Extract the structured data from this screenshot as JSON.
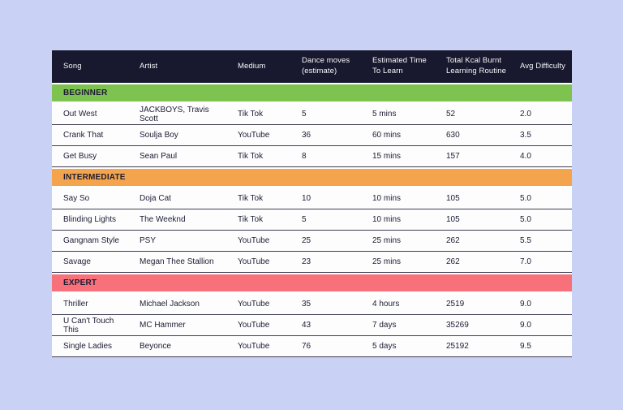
{
  "colors": {
    "page_background": "#c9d2f4",
    "header_background": "#18182f",
    "header_text": "#f7f7fa",
    "body_text": "#1c1c33",
    "row_background": "#fdfdfe",
    "row_divider": "#3f3f54",
    "beginner": "#7ec24f",
    "intermediate": "#f4a44c",
    "expert": "#f7707a"
  },
  "chart_data": {
    "type": "table",
    "columns": [
      {
        "lines": [
          "Song"
        ]
      },
      {
        "lines": [
          "Artist"
        ]
      },
      {
        "lines": [
          "Medium"
        ]
      },
      {
        "lines": [
          "Dance moves",
          "(estimate)"
        ]
      },
      {
        "lines": [
          "Estimated Time",
          "To Learn"
        ]
      },
      {
        "lines": [
          "Total Kcal Burnt",
          "Learning Routine"
        ]
      },
      {
        "lines": [
          "Avg Difficulty"
        ]
      }
    ],
    "sections": [
      {
        "label": "BEGINNER",
        "color_key": "beginner",
        "rows": [
          {
            "song": "Out West",
            "artist": "JACKBOYS, Travis Scott",
            "medium": "Tik Tok",
            "dance_moves": "5",
            "time_to_learn": "5 mins",
            "kcal_burnt": "52",
            "avg_difficulty": "2.0"
          },
          {
            "song": "Crank That",
            "artist": "Soulja Boy",
            "medium": "YouTube",
            "dance_moves": "36",
            "time_to_learn": "60 mins",
            "kcal_burnt": "630",
            "avg_difficulty": "3.5"
          },
          {
            "song": "Get Busy",
            "artist": "Sean Paul",
            "medium": "Tik Tok",
            "dance_moves": "8",
            "time_to_learn": "15 mins",
            "kcal_burnt": "157",
            "avg_difficulty": "4.0"
          }
        ]
      },
      {
        "label": "INTERMEDIATE",
        "color_key": "intermediate",
        "rows": [
          {
            "song": "Say So",
            "artist": "Doja Cat",
            "medium": "Tik Tok",
            "dance_moves": "10",
            "time_to_learn": "10 mins",
            "kcal_burnt": "105",
            "avg_difficulty": "5.0"
          },
          {
            "song": "Blinding Lights",
            "artist": "The Weeknd",
            "medium": "Tik Tok",
            "dance_moves": "5",
            "time_to_learn": "10 mins",
            "kcal_burnt": "105",
            "avg_difficulty": "5.0"
          },
          {
            "song": "Gangnam Style",
            "artist": "PSY",
            "medium": "YouTube",
            "dance_moves": "25",
            "time_to_learn": "25 mins",
            "kcal_burnt": "262",
            "avg_difficulty": "5.5"
          },
          {
            "song": "Savage",
            "artist": "Megan Thee Stallion",
            "medium": "YouTube",
            "dance_moves": "23",
            "time_to_learn": "25 mins",
            "kcal_burnt": "262",
            "avg_difficulty": "7.0"
          }
        ]
      },
      {
        "label": "EXPERT",
        "color_key": "expert",
        "rows": [
          {
            "song": "Thriller",
            "artist": "Michael Jackson",
            "medium": "YouTube",
            "dance_moves": "35",
            "time_to_learn": "4 hours",
            "kcal_burnt": "2519",
            "avg_difficulty": "9.0"
          },
          {
            "song": "U Can't Touch This",
            "artist": "MC Hammer",
            "medium": "YouTube",
            "dance_moves": "43",
            "time_to_learn": "7 days",
            "kcal_burnt": "35269",
            "avg_difficulty": "9.0"
          },
          {
            "song": "Single Ladies",
            "artist": "Beyonce",
            "medium": "YouTube",
            "dance_moves": "76",
            "time_to_learn": "5 days",
            "kcal_burnt": "25192",
            "avg_difficulty": "9.5"
          }
        ]
      }
    ]
  }
}
